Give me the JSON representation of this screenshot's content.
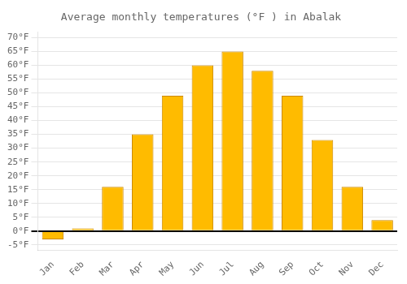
{
  "chart_data": {
    "type": "bar",
    "title": "Average monthly temperatures (°F ) in Abalak",
    "categories": [
      "Jan",
      "Feb",
      "Mar",
      "Apr",
      "May",
      "Jun",
      "Jul",
      "Aug",
      "Sep",
      "Oct",
      "Nov",
      "Dec"
    ],
    "values": [
      -3,
      1,
      16,
      35,
      49,
      60,
      65,
      58,
      49,
      33,
      16,
      4
    ],
    "color": "#FFBB00",
    "ylim": [
      -7,
      72
    ],
    "yticks": [
      {
        "value": -5,
        "label": "-5°F"
      },
      {
        "value": 0,
        "label": "0°F"
      },
      {
        "value": 5,
        "label": "5°F"
      },
      {
        "value": 10,
        "label": "10°F"
      },
      {
        "value": 15,
        "label": "15°F"
      },
      {
        "value": 20,
        "label": "20°F"
      },
      {
        "value": 25,
        "label": "25°F"
      },
      {
        "value": 30,
        "label": "30°F"
      },
      {
        "value": 35,
        "label": "35°F"
      },
      {
        "value": 40,
        "label": "40°F"
      },
      {
        "value": 45,
        "label": "45°F"
      },
      {
        "value": 50,
        "label": "50°F"
      },
      {
        "value": 55,
        "label": "55°F"
      },
      {
        "value": 60,
        "label": "60°F"
      },
      {
        "value": 65,
        "label": "65°F"
      },
      {
        "value": 70,
        "label": "70°F"
      }
    ],
    "grid": true
  }
}
